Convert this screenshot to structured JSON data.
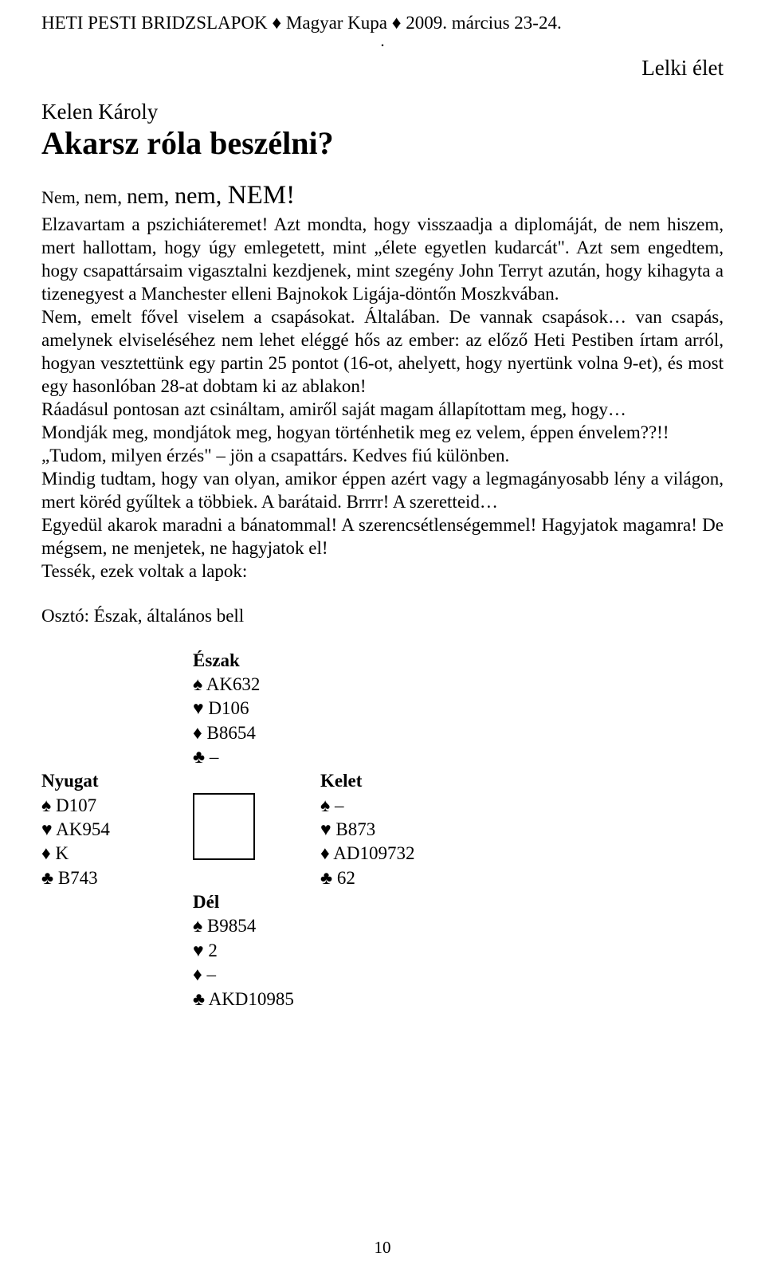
{
  "header": {
    "text": "HETI PESTI BRIDZSLAPOK ♦ Magyar Kupa ♦ 2009. március 23-24."
  },
  "section_label": "Lelki élet",
  "author": "Kelen Károly",
  "title": "Akarsz róla beszélni?",
  "intro": {
    "n1": "Nem, ",
    "n2": "nem, ",
    "n3": "nem, ",
    "n4": "nem, ",
    "n5": "NEM!"
  },
  "paragraphs": [
    "Elzavartam a pszichiáteremet! Azt mondta, hogy visszaadja a diplomáját, de nem hiszem, mert hallottam, hogy úgy emlegetett, mint „élete egyetlen kudarcát\". Azt sem engedtem, hogy csapattársaim vigasztalni kezdjenek, mint szegény John Terryt azután, hogy kihagyta a tizenegyest a Manchester elleni Bajnokok Ligája-döntőn Moszkvában.",
    "Nem, emelt fővel viselem a csapásokat. Általában. De vannak csapások… van csapás, amelynek elviseléséhez nem lehet eléggé hős az ember: az előző Heti Pestiben írtam arról, hogyan vesztettünk egy partin 25 pontot (16-ot, ahelyett, hogy nyertünk volna 9-et), és most egy hasonlóban 28-at dobtam ki az ablakon!",
    "Ráadásul pontosan azt csináltam, amiről saját magam állapítottam meg, hogy…",
    "Mondják meg, mondjátok meg, hogyan történhetik meg ez velem, éppen énvelem??!!",
    "„Tudom, milyen érzés\" – jön a csapattárs. Kedves fiú különben.",
    "Mindig tudtam, hogy van olyan, amikor éppen azért vagy a legmagányosabb lény a világon, mert köréd gyűltek a többiek. A barátaid. Brrrr! A szeretteid…",
    "Egyedül akarok maradni a bánatommal! A szerencsétlenségemmel! Hagyjatok magamra! De mégsem, ne menjetek, ne hagyjatok el!",
    "Tessék, ezek voltak a lapok:"
  ],
  "dealer": "Osztó: Észak, általános bell",
  "suits": {
    "spade": "♠",
    "heart": "♥",
    "diamond": "♦",
    "club": "♣"
  },
  "hands": {
    "north": {
      "label": "Észak",
      "spade": "AK632",
      "heart": "D106",
      "diamond": "B8654",
      "club": "–"
    },
    "west": {
      "label": "Nyugat",
      "spade": "D107",
      "heart": "AK954",
      "diamond": "K",
      "club": "B743"
    },
    "east": {
      "label": "Kelet",
      "spade": "–",
      "heart": "B873",
      "diamond": "AD109732",
      "club": "62"
    },
    "south": {
      "label": "Dél",
      "spade": "B9854",
      "heart": "2",
      "diamond": "–",
      "club": "AKD10985"
    }
  },
  "page_number": "10"
}
